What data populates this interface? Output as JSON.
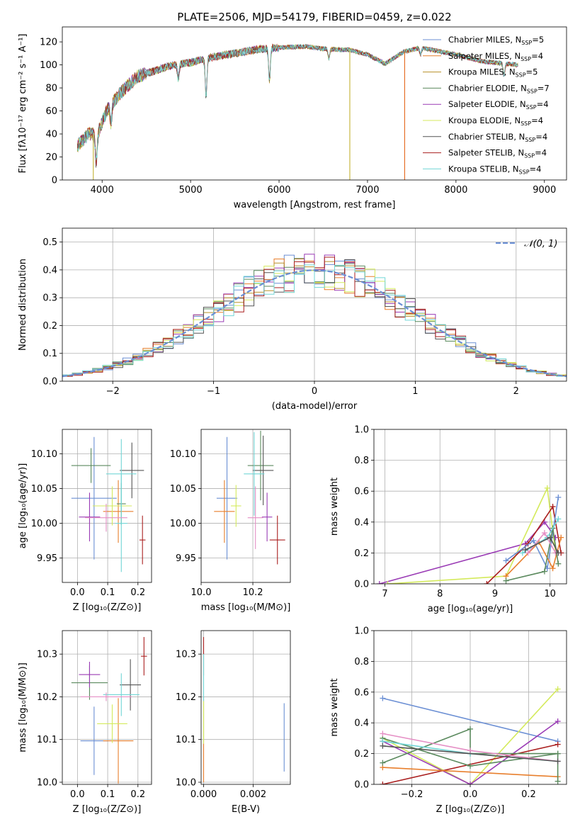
{
  "figure": {
    "title": "PLATE=2506, MJD=54179, FIBERID=0459, z=0.022"
  },
  "chart_data": [
    {
      "id": "spectrum",
      "type": "line",
      "xlabel": "wavelength [Angstrom, rest frame]",
      "ylabel": "Flux [fλ10⁻¹⁷ erg cm⁻² s⁻¹ A⁻¹]",
      "xlim": [
        3550,
        9250
      ],
      "ylim": [
        0,
        133
      ],
      "xticks": [
        4000,
        5000,
        6000,
        7000,
        8000,
        9000
      ],
      "yticks": [
        0,
        20,
        40,
        60,
        80,
        100,
        120
      ],
      "grid": false,
      "legend_position": "top-right",
      "x_range_data": [
        3720,
        8700
      ],
      "continuum": [
        [
          3720,
          30
        ],
        [
          3850,
          40
        ],
        [
          3950,
          40
        ],
        [
          4050,
          60
        ],
        [
          4200,
          75
        ],
        [
          4400,
          90
        ],
        [
          4600,
          95
        ],
        [
          4800,
          100
        ],
        [
          5000,
          102
        ],
        [
          5200,
          106
        ],
        [
          5500,
          110
        ],
        [
          5800,
          114
        ],
        [
          6000,
          115
        ],
        [
          6300,
          116
        ],
        [
          6500,
          114
        ],
        [
          6800,
          113
        ],
        [
          7000,
          109
        ],
        [
          7200,
          101
        ],
        [
          7400,
          111
        ],
        [
          7600,
          115
        ],
        [
          8000,
          109
        ],
        [
          8300,
          103
        ],
        [
          8700,
          100
        ]
      ],
      "features": [
        {
          "x": 3933,
          "depth": 25
        },
        {
          "x": 4100,
          "depth": 15
        },
        {
          "x": 4861,
          "depth": 12
        },
        {
          "x": 5175,
          "depth": 32
        },
        {
          "x": 5892,
          "depth": 28
        },
        {
          "x": 6563,
          "depth": 8
        },
        {
          "x": 7600,
          "depth": 6
        },
        {
          "x": 8542,
          "depth": 10
        }
      ],
      "spikes": [
        {
          "x": 6800,
          "y": 0,
          "color": "#c7b844"
        },
        {
          "x": 7420,
          "y": 0,
          "color": "#e66f28"
        },
        {
          "x": 3900,
          "y": 0,
          "color": "#c7b844"
        }
      ],
      "series": [
        {
          "label": "Chabrier MILES, N",
          "sub": "SSP",
          "eq": "=5",
          "color": "#6b8fd4"
        },
        {
          "label": "Salpeter MILES, N",
          "sub": "SSP",
          "eq": "=4",
          "color": "#e87f2d"
        },
        {
          "label": "Kroupa MILES, N",
          "sub": "SSP",
          "eq": "=5",
          "color": "#b8912a"
        },
        {
          "label": "Chabrier ELODIE, N",
          "sub": "SSP",
          "eq": "=7",
          "color": "#5b8a5e"
        },
        {
          "label": "Salpeter ELODIE, N",
          "sub": "SSP",
          "eq": "=4",
          "color": "#9a3bb5"
        },
        {
          "label": "Kroupa ELODIE, N",
          "sub": "SSP",
          "eq": "=4",
          "color": "#d4ea5c"
        },
        {
          "label": "Chabrier STELIB, N",
          "sub": "SSP",
          "eq": "=4",
          "color": "#555555"
        },
        {
          "label": "Salpeter STELIB, N",
          "sub": "SSP",
          "eq": "=4",
          "color": "#aa1f1f"
        },
        {
          "label": "Kroupa STELIB, N",
          "sub": "SSP",
          "eq": "=4",
          "color": "#72d6d6"
        }
      ]
    },
    {
      "id": "residuals",
      "type": "histogram",
      "xlabel": "(data-model)/error",
      "ylabel": "Normed distribution",
      "xlim": [
        -2.5,
        2.5
      ],
      "ylim": [
        0,
        0.55
      ],
      "xticks": [
        -2,
        -1,
        0,
        1,
        2
      ],
      "yticks": [
        0.0,
        0.1,
        0.2,
        0.3,
        0.4,
        0.5
      ],
      "grid": true,
      "legend_position": "top-right",
      "legend_label": "𝒩(0, 1)",
      "gauss_color": "#6b8fd4",
      "bin_width": 0.1
    },
    {
      "id": "age_vs_Z",
      "type": "scatter_errorbar",
      "xlabel": "Z [log₁₀(Z/Z⊙)]",
      "ylabel": "age  [log₁₀(age/yr)]",
      "xlim": [
        -0.05,
        0.245
      ],
      "ylim": [
        9.915,
        10.135
      ],
      "xticks": [
        0.0,
        0.1,
        0.2
      ],
      "yticks": [
        9.95,
        10.0,
        10.05,
        10.1
      ],
      "grid": true,
      "points": [
        {
          "x": 0.055,
          "xe": 0.075,
          "y": 10.036,
          "ye": 0.088,
          "color": "#6b8fd4"
        },
        {
          "x": 0.135,
          "xe": 0.05,
          "y": 10.017,
          "ye": 0.045,
          "color": "#e87f2d"
        },
        {
          "x": 0.145,
          "xe": 0.015,
          "y": 10.028,
          "ye": 0.03,
          "color": "#5b8a5e"
        },
        {
          "x": 0.045,
          "xe": 0.065,
          "y": 10.083,
          "ye": 0.025,
          "color": "#5b8a5e"
        },
        {
          "x": 0.04,
          "xe": 0.035,
          "y": 10.009,
          "ye": 0.035,
          "color": "#9a3bb5"
        },
        {
          "x": 0.115,
          "xe": 0.065,
          "y": 10.025,
          "ye": 0.028,
          "color": "#d4ea5c"
        },
        {
          "x": 0.18,
          "xe": 0.04,
          "y": 10.076,
          "ye": 0.04,
          "color": "#555555"
        },
        {
          "x": 0.215,
          "xe": 0.01,
          "y": 9.976,
          "ye": 0.035,
          "color": "#aa1f1f"
        },
        {
          "x": 0.145,
          "xe": 0.05,
          "y": 10.071,
          "ye": 0.05,
          "color": "#72d6d6"
        },
        {
          "x": 0.145,
          "xe": 0.02,
          "y": 10.0,
          "ye": 0.07,
          "color": "#72d6d6"
        },
        {
          "x": 0.095,
          "xe": 0.07,
          "y": 10.008,
          "ye": 0.02,
          "color": "#e58fc5"
        }
      ]
    },
    {
      "id": "age_vs_mass",
      "type": "scatter_errorbar",
      "xlabel": "mass [log₁₀(M/M⊙)]",
      "ylabel": "",
      "xlim": [
        10.0,
        10.345
      ],
      "ylim": [
        9.915,
        10.135
      ],
      "xticks": [
        10.0,
        10.2
      ],
      "yticks": [
        9.95,
        10.0,
        10.05,
        10.1
      ],
      "grid": true,
      "points": [
        {
          "x": 10.1,
          "xe": 0.04,
          "y": 10.036,
          "ye": 0.088,
          "color": "#6b8fd4"
        },
        {
          "x": 10.09,
          "xe": 0.04,
          "y": 10.017,
          "ye": 0.045,
          "color": "#e87f2d"
        },
        {
          "x": 10.135,
          "xe": 0.02,
          "y": 10.025,
          "ye": 0.03,
          "color": "#d4ea5c"
        },
        {
          "x": 10.23,
          "xe": 0.05,
          "y": 10.083,
          "ye": 0.05,
          "color": "#5b8a5e"
        },
        {
          "x": 10.255,
          "xe": 0.02,
          "y": 10.009,
          "ye": 0.035,
          "color": "#9a3bb5"
        },
        {
          "x": 10.24,
          "xe": 0.04,
          "y": 10.076,
          "ye": 0.05,
          "color": "#555555"
        },
        {
          "x": 10.295,
          "xe": 0.03,
          "y": 9.976,
          "ye": 0.035,
          "color": "#aa1f1f"
        },
        {
          "x": 10.205,
          "xe": 0.04,
          "y": 10.071,
          "ye": 0.06,
          "color": "#72d6d6"
        },
        {
          "x": 10.21,
          "xe": 0.03,
          "y": 10.008,
          "ye": 0.045,
          "color": "#e58fc5"
        }
      ]
    },
    {
      "id": "weight_vs_age",
      "type": "line",
      "xlabel": "age  [log₁₀(age/yr)]",
      "ylabel": "mass weight",
      "xlim": [
        6.8,
        10.3
      ],
      "ylim": [
        0,
        1.0
      ],
      "xticks": [
        7,
        8,
        9,
        10
      ],
      "yticks": [
        0.0,
        0.2,
        0.4,
        0.6,
        0.8,
        1.0
      ],
      "grid": true,
      "series": [
        {
          "color": "#9a3bb5",
          "points": [
            [
              6.9,
              0.0
            ],
            [
              9.55,
              0.26
            ],
            [
              9.9,
              0.4
            ],
            [
              10.1,
              0.3
            ]
          ]
        },
        {
          "color": "#d4ea5c",
          "points": [
            [
              7.05,
              0.0
            ],
            [
              9.2,
              0.05
            ],
            [
              9.95,
              0.62
            ],
            [
              10.1,
              0.2
            ]
          ]
        },
        {
          "color": "#aa1f1f",
          "points": [
            [
              8.85,
              0.0
            ],
            [
              9.6,
              0.26
            ],
            [
              10.05,
              0.5
            ],
            [
              10.2,
              0.2
            ]
          ]
        },
        {
          "color": "#6b8fd4",
          "points": [
            [
              9.2,
              0.15
            ],
            [
              9.7,
              0.28
            ],
            [
              9.95,
              0.1
            ],
            [
              10.15,
              0.56
            ]
          ]
        },
        {
          "color": "#e87f2d",
          "points": [
            [
              9.2,
              0.05
            ],
            [
              9.8,
              0.27
            ],
            [
              10.05,
              0.1
            ],
            [
              10.2,
              0.3
            ]
          ]
        },
        {
          "color": "#5b8a5e",
          "points": [
            [
              9.2,
              0.02
            ],
            [
              9.9,
              0.08
            ],
            [
              10.05,
              0.36
            ],
            [
              10.15,
              0.13
            ]
          ]
        },
        {
          "color": "#72d6d6",
          "points": [
            [
              9.5,
              0.2
            ],
            [
              9.95,
              0.3
            ],
            [
              10.15,
              0.42
            ]
          ]
        },
        {
          "color": "#e58fc5",
          "points": [
            [
              9.6,
              0.2
            ],
            [
              9.9,
              0.33
            ],
            [
              10.1,
              0.2
            ]
          ]
        },
        {
          "color": "#555555",
          "points": [
            [
              9.55,
              0.22
            ],
            [
              10.0,
              0.3
            ],
            [
              10.15,
              0.2
            ]
          ]
        }
      ]
    },
    {
      "id": "mass_vs_Z",
      "type": "scatter_errorbar",
      "xlabel": "Z [log₁₀(Z/Z⊙)]",
      "ylabel": "mass [log₁₀(M/M⊙)]",
      "xlim": [
        -0.05,
        0.245
      ],
      "ylim": [
        9.995,
        10.355
      ],
      "xticks": [
        0.0,
        0.1,
        0.2
      ],
      "yticks": [
        10.0,
        10.1,
        10.2,
        10.3
      ],
      "grid": true,
      "points": [
        {
          "x": 0.055,
          "xe": 0.045,
          "y": 10.097,
          "ye": 0.08,
          "color": "#6b8fd4"
        },
        {
          "x": 0.135,
          "xe": 0.05,
          "y": 10.097,
          "ye": 0.1,
          "color": "#e87f2d"
        },
        {
          "x": 0.115,
          "xe": 0.05,
          "y": 10.137,
          "ye": 0.045,
          "color": "#d4ea5c"
        },
        {
          "x": 0.04,
          "xe": 0.06,
          "y": 10.233,
          "ye": 0.04,
          "color": "#5b8a5e"
        },
        {
          "x": 0.04,
          "xe": 0.035,
          "y": 10.252,
          "ye": 0.03,
          "color": "#9a3bb5"
        },
        {
          "x": 0.175,
          "xe": 0.035,
          "y": 10.228,
          "ye": 0.06,
          "color": "#555555"
        },
        {
          "x": 0.22,
          "xe": 0.01,
          "y": 10.295,
          "ye": 0.045,
          "color": "#aa1f1f"
        },
        {
          "x": 0.145,
          "xe": 0.06,
          "y": 10.205,
          "ye": 0.05,
          "color": "#72d6d6"
        },
        {
          "x": 0.095,
          "xe": 0.085,
          "y": 10.2,
          "ye": 0.01,
          "color": "#e58fc5"
        }
      ]
    },
    {
      "id": "mass_vs_EBV",
      "type": "scatter_errorbar",
      "xlabel": "E(B-V)",
      "ylabel": "",
      "xlim": [
        -0.0001,
        0.0035
      ],
      "ylim": [
        9.995,
        10.355
      ],
      "xticks": [
        0.0,
        0.002
      ],
      "yticks": [
        10.0,
        10.1,
        10.2,
        10.3
      ],
      "grid": true,
      "points": [
        {
          "x": 0.0,
          "xe": 0.0,
          "y": 10.295,
          "ye": 0.045,
          "color": "#aa1f1f"
        },
        {
          "x": 0.0,
          "xe": 0.0,
          "y": 10.1,
          "ye": 0.1,
          "color": "#e87f2d"
        },
        {
          "x": 0.0,
          "xe": 0.0,
          "y": 10.2,
          "ye": 0.1,
          "color": "#72d6d6"
        },
        {
          "x": 0.0,
          "xe": 0.0,
          "y": 10.14,
          "ye": 0.05,
          "color": "#d4ea5c"
        },
        {
          "x": 0.00325,
          "xe": 0.0,
          "y": 10.105,
          "ye": 0.08,
          "color": "#6b8fd4"
        }
      ]
    },
    {
      "id": "weight_vs_Z",
      "type": "line",
      "xlabel": "Z [log₁₀(Z/Z⊙)]",
      "ylabel": "mass weight",
      "xlim": [
        -0.33,
        0.33
      ],
      "ylim": [
        0,
        1.0
      ],
      "xticks": [
        -0.2,
        0.0,
        0.2
      ],
      "yticks": [
        0.0,
        0.2,
        0.4,
        0.6,
        0.8,
        1.0
      ],
      "grid": true,
      "series": [
        {
          "color": "#6b8fd4",
          "points": [
            [
              -0.3,
              0.56
            ],
            [
              0.3,
              0.28
            ]
          ]
        },
        {
          "color": "#d4ea5c",
          "points": [
            [
              -0.3,
              0.3
            ],
            [
              0.0,
              0.0
            ],
            [
              0.3,
              0.62
            ]
          ]
        },
        {
          "color": "#9a3bb5",
          "points": [
            [
              -0.3,
              0.28
            ],
            [
              0.0,
              0.0
            ],
            [
              0.3,
              0.41
            ]
          ]
        },
        {
          "color": "#aa1f1f",
          "points": [
            [
              -0.3,
              0.0
            ],
            [
              0.3,
              0.26
            ]
          ]
        },
        {
          "color": "#e87f2d",
          "points": [
            [
              -0.3,
              0.11
            ],
            [
              0.3,
              0.05
            ]
          ]
        },
        {
          "color": "#5b8a5e",
          "points": [
            [
              -0.3,
              0.14
            ],
            [
              0.0,
              0.36
            ],
            [
              0.0,
              0.2
            ],
            [
              0.3,
              0.2
            ],
            [
              0.3,
              0.02
            ]
          ]
        },
        {
          "color": "#5b8a5e",
          "points": [
            [
              -0.3,
              0.3
            ],
            [
              0.0,
              0.12
            ],
            [
              0.3,
              0.2
            ]
          ]
        },
        {
          "color": "#72d6d6",
          "points": [
            [
              -0.3,
              0.28
            ],
            [
              0.0,
              0.2
            ],
            [
              0.3,
              0.15
            ]
          ]
        },
        {
          "color": "#e58fc5",
          "points": [
            [
              -0.3,
              0.33
            ],
            [
              0.0,
              0.22
            ],
            [
              0.3,
              0.15
            ]
          ]
        },
        {
          "color": "#555555",
          "points": [
            [
              -0.3,
              0.25
            ],
            [
              0.3,
              0.15
            ]
          ]
        }
      ]
    }
  ]
}
